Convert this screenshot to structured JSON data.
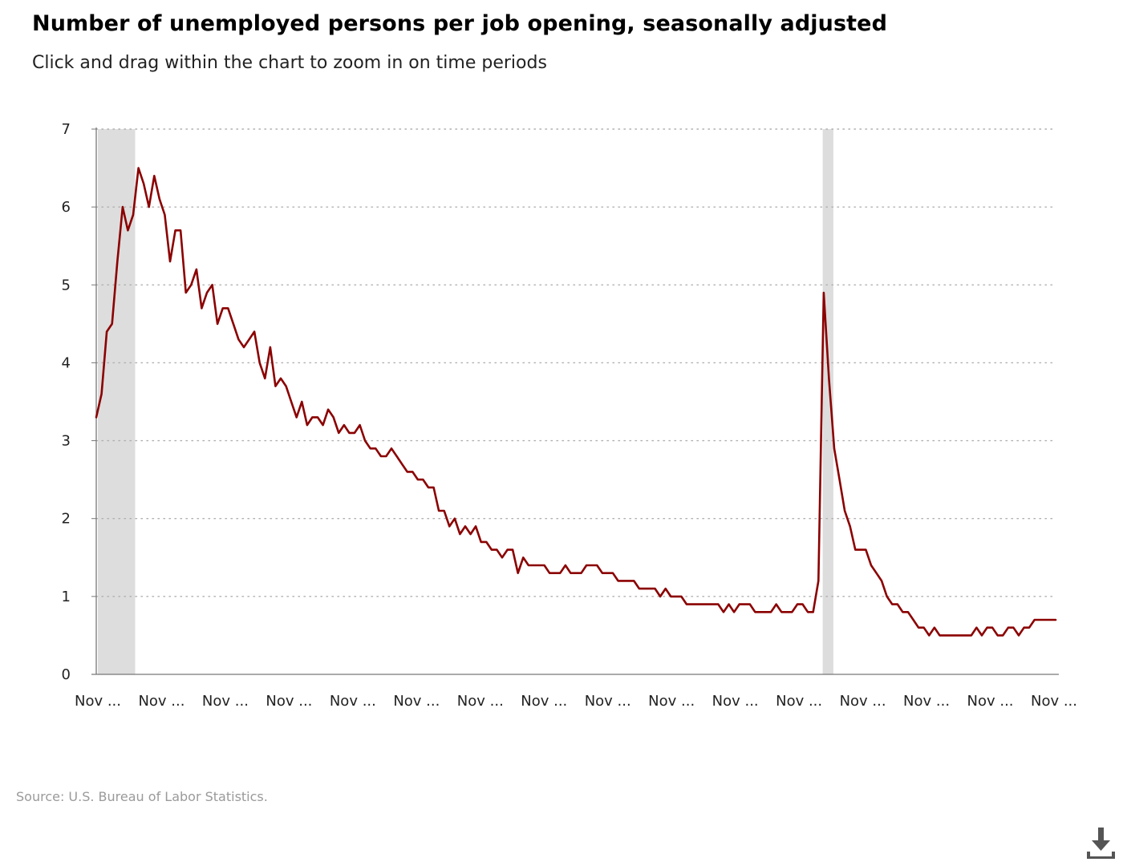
{
  "header": {
    "title": "Number of unemployed persons per job opening, seasonally adjusted",
    "subtitle": "Click and drag within the chart to zoom in on time periods"
  },
  "source": "Source: U.S. Bureau of Labor Statistics.",
  "download": {
    "icon": "download-icon"
  },
  "colors": {
    "line": "#8b0000",
    "recession": "#dddddd",
    "grid": "#b0b0b0",
    "axis": "#777777"
  },
  "chart_data": {
    "type": "line",
    "title": "Number of unemployed persons per job opening, seasonally adjusted",
    "xlabel": "",
    "ylabel": "",
    "ylim": [
      0,
      7
    ],
    "y_ticks": [
      0,
      1,
      2,
      3,
      4,
      5,
      6,
      7
    ],
    "x_tick_labels": [
      "Nov ...",
      "Nov ...",
      "Nov ...",
      "Nov ...",
      "Nov ...",
      "Nov ...",
      "Nov ...",
      "Nov ...",
      "Nov ...",
      "Nov ...",
      "Nov ...",
      "Nov ...",
      "Nov ...",
      "Nov ...",
      "Nov ...",
      "Nov ..."
    ],
    "x_range": [
      0,
      180
    ],
    "grid": "horizontal dotted",
    "legend": "none",
    "recessions": [
      [
        0,
        7
      ],
      [
        136,
        138
      ]
    ],
    "series": [
      {
        "values": [
          3.3,
          3.6,
          4.4,
          4.5,
          5.3,
          6.0,
          5.7,
          5.9,
          6.5,
          6.3,
          6.0,
          6.4,
          6.1,
          5.9,
          5.3,
          5.7,
          5.7,
          4.9,
          5.0,
          5.2,
          4.7,
          4.9,
          5.0,
          4.5,
          4.7,
          4.7,
          4.5,
          4.3,
          4.2,
          4.3,
          4.4,
          4.0,
          3.8,
          4.2,
          3.7,
          3.8,
          3.7,
          3.5,
          3.3,
          3.5,
          3.2,
          3.3,
          3.3,
          3.2,
          3.4,
          3.3,
          3.1,
          3.2,
          3.1,
          3.1,
          3.2,
          3.0,
          2.9,
          2.9,
          2.8,
          2.8,
          2.9,
          2.8,
          2.7,
          2.6,
          2.6,
          2.5,
          2.5,
          2.4,
          2.4,
          2.1,
          2.1,
          1.9,
          2.0,
          1.8,
          1.9,
          1.8,
          1.9,
          1.7,
          1.7,
          1.6,
          1.6,
          1.5,
          1.6,
          1.6,
          1.3,
          1.5,
          1.4,
          1.4,
          1.4,
          1.4,
          1.3,
          1.3,
          1.3,
          1.4,
          1.3,
          1.3,
          1.3,
          1.4,
          1.4,
          1.4,
          1.3,
          1.3,
          1.3,
          1.2,
          1.2,
          1.2,
          1.2,
          1.1,
          1.1,
          1.1,
          1.1,
          1.0,
          1.1,
          1.0,
          1.0,
          1.0,
          0.9,
          0.9,
          0.9,
          0.9,
          0.9,
          0.9,
          0.9,
          0.8,
          0.9,
          0.8,
          0.9,
          0.9,
          0.9,
          0.8,
          0.8,
          0.8,
          0.8,
          0.9,
          0.8,
          0.8,
          0.8,
          0.9,
          0.9,
          0.8,
          0.8,
          1.2,
          4.9,
          3.8,
          2.9,
          2.5,
          2.1,
          1.9,
          1.6,
          1.6,
          1.6,
          1.4,
          1.3,
          1.2,
          1.0,
          0.9,
          0.9,
          0.8,
          0.8,
          0.7,
          0.6,
          0.6,
          0.5,
          0.6,
          0.5,
          0.5,
          0.5,
          0.5,
          0.5,
          0.5,
          0.5,
          0.6,
          0.5,
          0.6,
          0.6,
          0.5,
          0.5,
          0.6,
          0.6,
          0.5,
          0.6,
          0.6,
          0.7,
          0.7,
          0.7,
          0.7,
          0.7
        ]
      }
    ]
  }
}
